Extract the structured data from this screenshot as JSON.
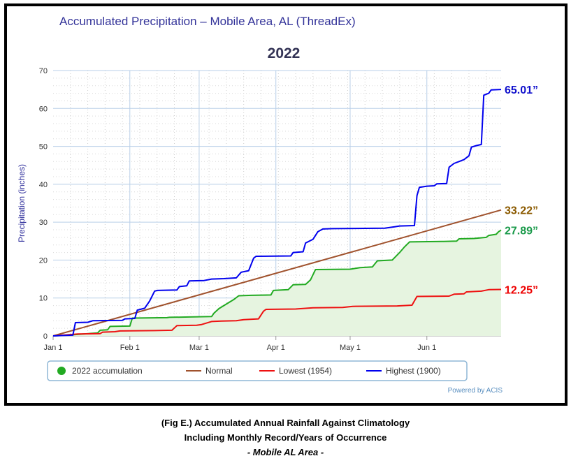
{
  "chart_data": {
    "type": "line",
    "title": "Accumulated Precipitation – Mobile Area, AL (ThreadEx)",
    "subtitle": "2022",
    "ylabel": "Precipitation (inches)",
    "xlabel": "",
    "ylim": [
      0,
      70
    ],
    "yticks": [
      0,
      10,
      20,
      30,
      40,
      50,
      60,
      70
    ],
    "x_ticks": [
      {
        "label": "Jan 1",
        "day": 0
      },
      {
        "label": "Feb 1",
        "day": 31
      },
      {
        "label": "Mar 1",
        "day": 59
      },
      {
        "label": "Apr 1",
        "day": 90
      },
      {
        "label": "May 1",
        "day": 120
      },
      {
        "label": "Jun 1",
        "day": 151
      }
    ],
    "xlim": [
      0,
      181
    ],
    "grid": true,
    "legend_position": "bottom",
    "credit": "Powered by ACIS",
    "series": [
      {
        "name": "2022 accumulation",
        "color": "#22aa22",
        "fill": "#e6f4e0",
        "final_label": "27.89”",
        "final_color": "#1a9a4a",
        "points": [
          [
            0,
            0
          ],
          [
            8,
            0.3
          ],
          [
            18,
            0.8
          ],
          [
            19,
            1.5
          ],
          [
            22,
            1.6
          ],
          [
            23,
            2.5
          ],
          [
            31,
            2.6
          ],
          [
            32,
            4.7
          ],
          [
            46,
            4.8
          ],
          [
            47,
            4.9
          ],
          [
            55,
            5.0
          ],
          [
            64,
            5.1
          ],
          [
            65,
            6.0
          ],
          [
            67,
            7.2
          ],
          [
            70,
            8.4
          ],
          [
            73,
            9.6
          ],
          [
            75,
            10.6
          ],
          [
            80,
            10.7
          ],
          [
            88,
            10.8
          ],
          [
            89,
            12.0
          ],
          [
            95,
            12.2
          ],
          [
            97,
            13.5
          ],
          [
            102,
            13.6
          ],
          [
            104,
            14.8
          ],
          [
            106,
            17.5
          ],
          [
            120,
            17.6
          ],
          [
            124,
            18.0
          ],
          [
            129,
            18.2
          ],
          [
            131,
            19.8
          ],
          [
            137,
            20.0
          ],
          [
            140,
            22.0
          ],
          [
            142,
            23.5
          ],
          [
            144,
            24.8
          ],
          [
            157,
            24.9
          ],
          [
            163,
            25.0
          ],
          [
            164,
            25.6
          ],
          [
            170,
            25.7
          ],
          [
            175,
            26.0
          ],
          [
            176,
            26.5
          ],
          [
            179,
            26.8
          ],
          [
            180,
            27.5
          ],
          [
            181,
            27.89
          ]
        ]
      },
      {
        "name": "Normal",
        "color": "#a0522d",
        "final_label": "33.22”",
        "final_color": "#8b5a00",
        "points": [
          [
            0,
            0
          ],
          [
            181,
            33.22
          ]
        ]
      },
      {
        "name": "Lowest (1954)",
        "color": "#ee1111",
        "final_label": "12.25”",
        "final_color": "#ee0000",
        "points": [
          [
            0,
            0
          ],
          [
            10,
            0.5
          ],
          [
            19,
            0.6
          ],
          [
            20,
            1.0
          ],
          [
            25,
            1.1
          ],
          [
            27,
            1.3
          ],
          [
            41,
            1.4
          ],
          [
            48,
            1.5
          ],
          [
            50,
            2.7
          ],
          [
            58,
            2.8
          ],
          [
            60,
            3.0
          ],
          [
            64,
            3.8
          ],
          [
            68,
            3.9
          ],
          [
            74,
            4.0
          ],
          [
            77,
            4.3
          ],
          [
            83,
            4.5
          ],
          [
            85,
            6.5
          ],
          [
            86,
            7.0
          ],
          [
            98,
            7.1
          ],
          [
            105,
            7.4
          ],
          [
            117,
            7.5
          ],
          [
            121,
            7.8
          ],
          [
            139,
            7.9
          ],
          [
            145,
            8.1
          ],
          [
            147,
            10.4
          ],
          [
            160,
            10.5
          ],
          [
            162,
            11.0
          ],
          [
            166,
            11.1
          ],
          [
            167,
            11.6
          ],
          [
            173,
            11.8
          ],
          [
            176,
            12.2
          ],
          [
            181,
            12.25
          ]
        ]
      },
      {
        "name": "Highest (1900)",
        "color": "#0000ee",
        "final_label": "65.01”",
        "final_color": "#1010cc",
        "points": [
          [
            0,
            0
          ],
          [
            8,
            0.2
          ],
          [
            9,
            3.5
          ],
          [
            14,
            3.6
          ],
          [
            16,
            4.0
          ],
          [
            28,
            4.1
          ],
          [
            29,
            4.5
          ],
          [
            33,
            4.6
          ],
          [
            34,
            6.8
          ],
          [
            37,
            7.3
          ],
          [
            39,
            9.2
          ],
          [
            41,
            11.8
          ],
          [
            42,
            12.0
          ],
          [
            50,
            12.1
          ],
          [
            51,
            13.0
          ],
          [
            54,
            13.2
          ],
          [
            55,
            14.5
          ],
          [
            61,
            14.6
          ],
          [
            64,
            15.0
          ],
          [
            69,
            15.1
          ],
          [
            74,
            15.3
          ],
          [
            76,
            16.8
          ],
          [
            79,
            17.2
          ],
          [
            81,
            20.5
          ],
          [
            82,
            21.0
          ],
          [
            96,
            21.1
          ],
          [
            97,
            22.0
          ],
          [
            101,
            22.2
          ],
          [
            102,
            24.5
          ],
          [
            105,
            25.5
          ],
          [
            107,
            27.5
          ],
          [
            109,
            28.2
          ],
          [
            113,
            28.3
          ],
          [
            134,
            28.4
          ],
          [
            138,
            28.8
          ],
          [
            140,
            29.0
          ],
          [
            146,
            29.1
          ],
          [
            147,
            37.0
          ],
          [
            148,
            39.2
          ],
          [
            151,
            39.5
          ],
          [
            154,
            39.6
          ],
          [
            155,
            40.1
          ],
          [
            159,
            40.2
          ],
          [
            160,
            44.5
          ],
          [
            162,
            45.5
          ],
          [
            164,
            46.0
          ],
          [
            166,
            46.5
          ],
          [
            168,
            47.5
          ],
          [
            169,
            49.8
          ],
          [
            171,
            50.2
          ],
          [
            173,
            50.5
          ],
          [
            174,
            63.5
          ],
          [
            176,
            64.0
          ],
          [
            177,
            64.9
          ],
          [
            181,
            65.01
          ]
        ]
      }
    ]
  },
  "caption": {
    "line1": "(Fig E.) Accumulated Annual Rainfall Against  Climatology",
    "line2": "Including Monthly Record/Years of Occurrence",
    "line3": "- Mobile AL Area -"
  }
}
